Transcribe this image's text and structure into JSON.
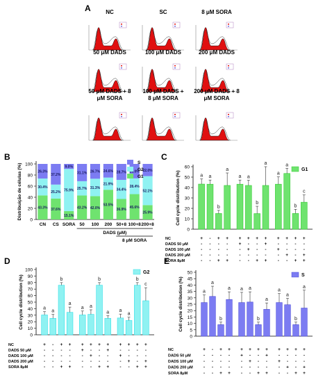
{
  "panels": {
    "A": "A",
    "B": "B",
    "C": "C",
    "D": "D",
    "E": "E"
  },
  "histograms": [
    {
      "title": [
        "NC"
      ]
    },
    {
      "title": [
        "SC"
      ]
    },
    {
      "title": [
        "8 μM SORA"
      ]
    },
    {
      "title": [
        "50 μM DADS"
      ]
    },
    {
      "title": [
        "100 μM DADS"
      ]
    },
    {
      "title": [
        "200 μM DADS"
      ]
    },
    {
      "title": [
        "50 μM DADS + 8",
        "μM SORA"
      ]
    },
    {
      "title": [
        "100 μM DADS +",
        "8 μM SORA"
      ]
    },
    {
      "title": [
        "200 μM DADS + 8",
        "μM SORA"
      ]
    }
  ],
  "colors": {
    "G1": "#6fe36f",
    "G2": "#8ff2f2",
    "S": "#7c7cf2",
    "G1_dark": "#33cc33",
    "G2_dark": "#33e0e8",
    "S_dark": "#4b4bdc",
    "histo_red": "#e01010"
  },
  "chart_data": [
    {
      "panel": "B",
      "type": "bar",
      "stacked": true,
      "categories": [
        "CN",
        "CS",
        "SORA",
        "50",
        "100",
        "200",
        "50+8",
        "100+8",
        "200+8"
      ],
      "ylabel": "Distribuição de células (%)",
      "ylim": [
        0,
        100
      ],
      "yticks": [
        "0",
        "20",
        "40",
        "60",
        "80",
        "100"
      ],
      "group_label": "DADS (μM)",
      "group_label2": "8 μM SORA",
      "series": [
        {
          "name": "G1",
          "values": [
            43.3,
            37.6,
            15.1,
            43.2,
            42.0,
            53.5,
            36.9,
            45.6,
            25.9
          ],
          "labels": [
            "43.3%",
            "37.6%",
            "15.1%",
            "43.2%",
            "42.0%",
            "53.5%",
            "36.9%",
            "45.6%",
            "25.9%"
          ]
        },
        {
          "name": "G2",
          "values": [
            30.4,
            25.2,
            75.9,
            25.7,
            31.3,
            21.9,
            34.4,
            28.4,
            52.1
          ],
          "labels": [
            "30.4%",
            "25.2%",
            "75.9%",
            "25.7%",
            "31.3%",
            "21.9%",
            "34.4%",
            "28.4%",
            "52.1%"
          ]
        },
        {
          "name": "S",
          "values": [
            26.3,
            37.2,
            9.0,
            31.1,
            26.7,
            24.6,
            28.7,
            26.0,
            22.0
          ],
          "labels": [
            "26.3%",
            "37.2%",
            "9.0%",
            "31.1%",
            "26.7%",
            "24.6%",
            "28.7%",
            "26.0%",
            "22.0%"
          ]
        }
      ],
      "legend": [
        "S",
        "G2",
        "G1"
      ]
    },
    {
      "panel": "C",
      "type": "bar",
      "ylabel": "Cell cycle distribution (%)",
      "ylim": [
        0,
        60
      ],
      "yticks": [
        "0",
        "10",
        "20",
        "30",
        "40",
        "50",
        "60"
      ],
      "legend": "G1",
      "values": [
        43.3,
        43.2,
        15.1,
        42.0,
        43.2,
        42.0,
        15.0,
        42.0,
        43.2,
        53.5,
        15.1,
        25.9
      ],
      "errors": [
        5,
        4,
        3,
        12,
        4,
        5,
        7,
        18,
        7,
        5,
        4,
        7
      ],
      "letters": [
        "a",
        "a",
        "b",
        "a",
        "a",
        "a",
        "b",
        "a",
        "a",
        "a",
        "b",
        "c"
      ]
    },
    {
      "panel": "D",
      "type": "bar",
      "ylabel": "Cell cycle distribution (%)",
      "ylim": [
        0,
        100
      ],
      "yticks": [
        "0",
        "10",
        "20",
        "30",
        "40",
        "50",
        "60",
        "70",
        "80",
        "90",
        "100"
      ],
      "legend": "G2",
      "values": [
        30.4,
        25.2,
        75.9,
        34.4,
        30.4,
        31.3,
        75.9,
        25.2,
        25.7,
        21.9,
        75.9,
        52.1
      ],
      "errors": [
        5,
        6,
        4,
        8,
        6,
        7,
        4,
        4,
        6,
        5,
        4,
        20
      ],
      "letters": [
        "a",
        "a",
        "b",
        "a",
        "a",
        "a",
        "b",
        "a",
        "a",
        "a",
        "b",
        "c"
      ]
    },
    {
      "panel": "E",
      "type": "bar",
      "ylabel": "Cell cycle distribution (%)",
      "ylim": [
        0,
        50
      ],
      "yticks": [
        "0",
        "5",
        "10",
        "15",
        "20",
        "25",
        "30",
        "35",
        "40",
        "45",
        "50"
      ],
      "legend": "S",
      "values": [
        26.3,
        31.1,
        9.0,
        28.7,
        26.3,
        26.7,
        9.0,
        21.0,
        26.3,
        24.6,
        9.0,
        22.0
      ],
      "errors": [
        6,
        8,
        2,
        6,
        8,
        8,
        2,
        5,
        7,
        5,
        2,
        14
      ],
      "letters": [
        "a",
        "a",
        "b",
        "a",
        "a",
        "a",
        "b",
        "a",
        "a",
        "a",
        "b",
        "a"
      ]
    }
  ],
  "treatment_table": {
    "rows": [
      "NC",
      "DADS 50 μM",
      "DADS 100 μM",
      "DADS 200 μM",
      "SORA 8μM"
    ],
    "cells": [
      [
        "+",
        "-",
        "+",
        "+",
        "+",
        "+",
        "+",
        "+",
        "+",
        "+",
        "+",
        "+"
      ],
      [
        "-",
        "-",
        "-",
        "-",
        "+",
        "-",
        "-",
        "+",
        "-",
        "-",
        "-",
        "-"
      ],
      [
        "-",
        "-",
        "-",
        "-",
        "-",
        "+",
        "-",
        "-",
        "+",
        "-",
        "-",
        "-"
      ],
      [
        "-",
        "-",
        "-",
        "-",
        "-",
        "-",
        "-",
        "-",
        "-",
        "+",
        "-",
        "+"
      ],
      [
        "-",
        "-",
        "+",
        "+",
        "-",
        "-",
        "+",
        "+",
        "-",
        "-",
        "+",
        "+"
      ]
    ]
  }
}
